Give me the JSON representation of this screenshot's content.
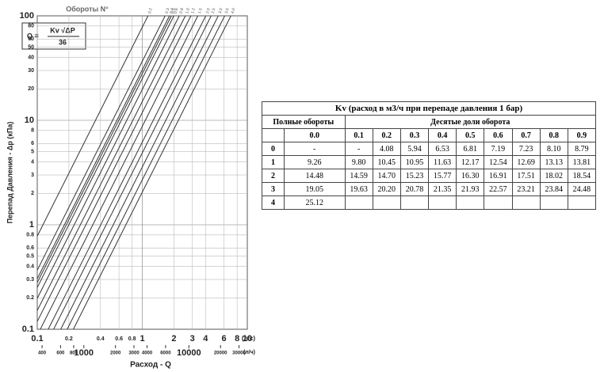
{
  "chart_data": {
    "type": "line",
    "series_title": "Обороты N°",
    "formula": {
      "lhs": "Q =",
      "numerator": "Kv √ΔP",
      "denominator": "36"
    },
    "xlabel": "Расход - Q",
    "ylabel": "Перепад Давления - Δp (кПа)",
    "x_unit": "(л/с)",
    "x2_unit": "(л/ч)",
    "xscale": "log",
    "yscale": "log",
    "grid": true,
    "color": "#333333",
    "xlim": [
      0.1,
      10
    ],
    "ylim": [
      0.1,
      100
    ],
    "xticks": [
      0.1,
      0.2,
      0.4,
      0.6,
      0.8,
      1,
      2,
      3,
      4,
      6,
      8,
      10
    ],
    "yticks": [
      0.1,
      0.2,
      0.3,
      0.4,
      0.5,
      0.6,
      0.8,
      1,
      2,
      3,
      4,
      5,
      6,
      8,
      10,
      20,
      30,
      40,
      50,
      60,
      80,
      100
    ],
    "x2lim": [
      360,
      36000
    ],
    "x2ticks": [
      400,
      600,
      800,
      1000,
      2000,
      3000,
      4000,
      6000,
      10000,
      20000,
      30000
    ],
    "series": [
      {
        "name": "0.2",
        "kv": 4.08
      },
      {
        "name": "0.3",
        "kv": 5.94
      },
      {
        "name": "0.4",
        "kv": 6.53
      },
      {
        "name": "0.5",
        "kv": 6.81
      },
      {
        "name": "0.6",
        "kv": 7.19
      },
      {
        "name": "0.8",
        "kv": 8.1
      },
      {
        "name": "1.0",
        "kv": 9.26
      },
      {
        "name": "1.2",
        "kv": 10.45
      },
      {
        "name": "1.5",
        "kv": 12.17
      },
      {
        "name": "2.0",
        "kv": 14.48
      },
      {
        "name": "2.5",
        "kv": 16.3
      },
      {
        "name": "3.0",
        "kv": 19.05
      },
      {
        "name": "3.5",
        "kv": 21.93
      },
      {
        "name": "4.0",
        "kv": 25.12
      }
    ]
  },
  "table": {
    "title": "Kv (расход в м3/ч при перепаде давления 1 бар)",
    "header_full": "Полные обороты",
    "header_tenths": "Десятые доли оборота",
    "columns": [
      "0.0",
      "0.1",
      "0.2",
      "0.3",
      "0.4",
      "0.5",
      "0.6",
      "0.7",
      "0.8",
      "0.9"
    ],
    "rows": [
      [
        "0",
        "-",
        "-",
        "4.08",
        "5.94",
        "6.53",
        "6.81",
        "7.19",
        "7.23",
        "8.10",
        "8.79"
      ],
      [
        "1",
        "9.26",
        "9.80",
        "10.45",
        "10.95",
        "11.63",
        "12.17",
        "12.54",
        "12.69",
        "13.13",
        "13.81"
      ],
      [
        "2",
        "14.48",
        "14.59",
        "14.70",
        "15.23",
        "15.77",
        "16.30",
        "16.91",
        "17.51",
        "18.02",
        "18.54"
      ],
      [
        "3",
        "19.05",
        "19.63",
        "20.20",
        "20.78",
        "21.35",
        "21.93",
        "22.57",
        "23.21",
        "23.84",
        "24.48"
      ],
      [
        "4",
        "25.12"
      ]
    ]
  }
}
